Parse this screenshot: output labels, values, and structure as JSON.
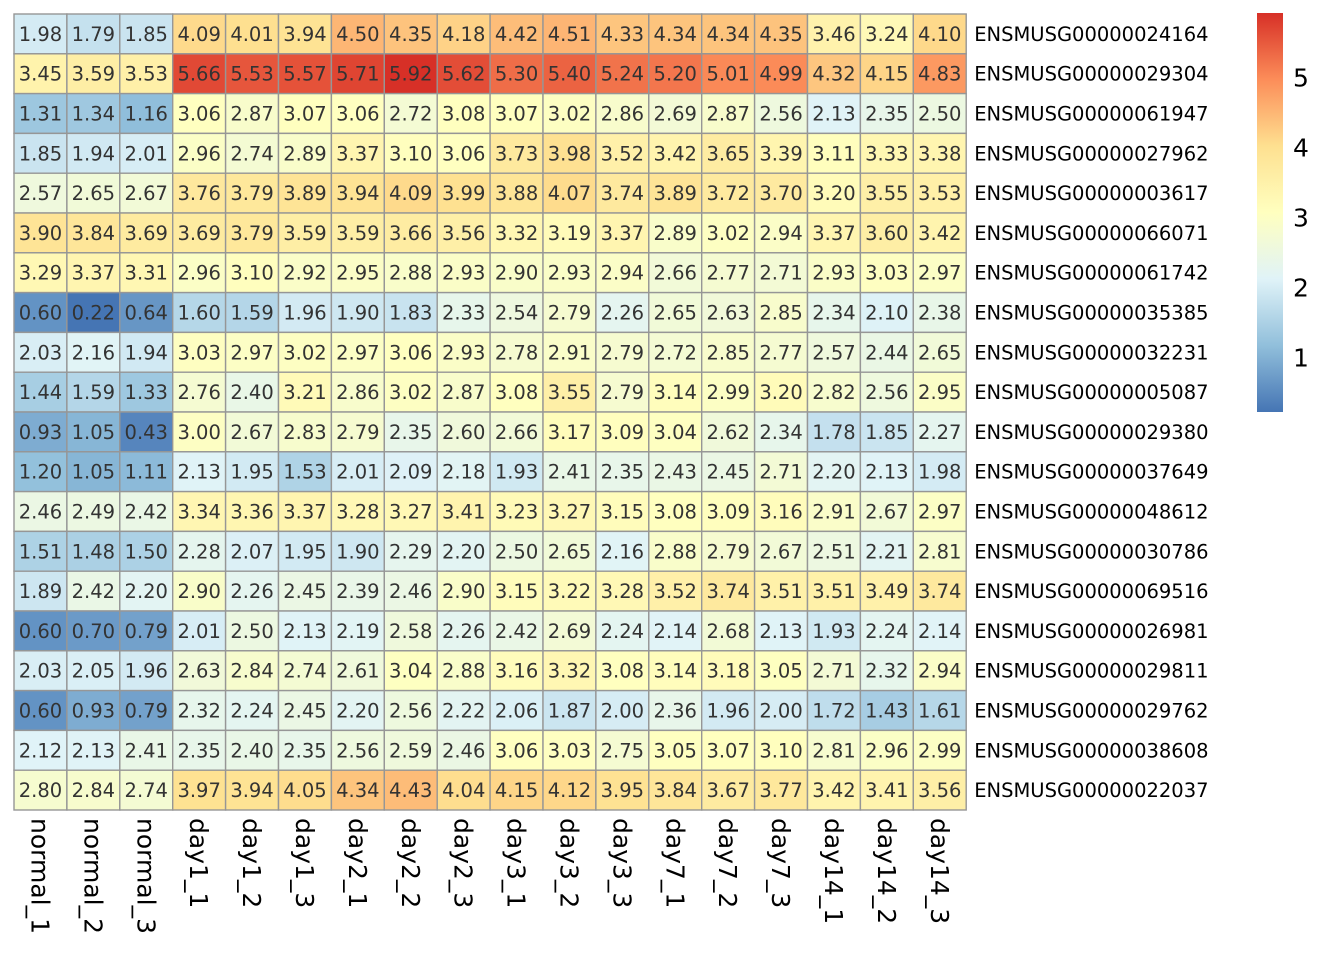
{
  "chart_data": {
    "type": "heatmap",
    "columns": [
      "normal_1",
      "normal_2",
      "normal_3",
      "day1_1",
      "day1_2",
      "day1_3",
      "day2_1",
      "day2_2",
      "day2_3",
      "day3_1",
      "day3_2",
      "day3_3",
      "day7_1",
      "day7_2",
      "day7_3",
      "day14_1",
      "day14_2",
      "day14_3"
    ],
    "rows": [
      "ENSMUSG00000024164",
      "ENSMUSG00000029304",
      "ENSMUSG00000061947",
      "ENSMUSG00000027962",
      "ENSMUSG00000003617",
      "ENSMUSG00000066071",
      "ENSMUSG00000061742",
      "ENSMUSG00000035385",
      "ENSMUSG00000032231",
      "ENSMUSG00000005087",
      "ENSMUSG00000029380",
      "ENSMUSG00000037649",
      "ENSMUSG00000048612",
      "ENSMUSG00000030786",
      "ENSMUSG00000069516",
      "ENSMUSG00000026981",
      "ENSMUSG00000029811",
      "ENSMUSG00000029762",
      "ENSMUSG00000038608",
      "ENSMUSG00000022037"
    ],
    "values": [
      [
        1.98,
        1.79,
        1.85,
        4.09,
        4.01,
        3.94,
        4.5,
        4.35,
        4.18,
        4.42,
        4.51,
        4.33,
        4.34,
        4.34,
        4.35,
        3.46,
        3.24,
        4.1
      ],
      [
        3.45,
        3.59,
        3.53,
        5.66,
        5.53,
        5.57,
        5.71,
        5.92,
        5.62,
        5.3,
        5.4,
        5.24,
        5.2,
        5.01,
        4.99,
        4.32,
        4.15,
        4.83
      ],
      [
        1.31,
        1.34,
        1.16,
        3.06,
        2.87,
        3.07,
        3.06,
        2.72,
        3.08,
        3.07,
        3.02,
        2.86,
        2.69,
        2.87,
        2.56,
        2.13,
        2.35,
        2.5
      ],
      [
        1.85,
        1.94,
        2.01,
        2.96,
        2.74,
        2.89,
        3.37,
        3.1,
        3.06,
        3.73,
        3.98,
        3.52,
        3.42,
        3.65,
        3.39,
        3.11,
        3.33,
        3.38
      ],
      [
        2.57,
        2.65,
        2.67,
        3.76,
        3.79,
        3.89,
        3.94,
        4.09,
        3.99,
        3.88,
        4.07,
        3.74,
        3.89,
        3.72,
        3.7,
        3.2,
        3.55,
        3.53
      ],
      [
        3.9,
        3.84,
        3.69,
        3.69,
        3.79,
        3.59,
        3.59,
        3.66,
        3.56,
        3.32,
        3.19,
        3.37,
        2.89,
        3.02,
        2.94,
        3.37,
        3.6,
        3.42
      ],
      [
        3.29,
        3.37,
        3.31,
        2.96,
        3.1,
        2.92,
        2.95,
        2.88,
        2.93,
        2.9,
        2.93,
        2.94,
        2.66,
        2.77,
        2.71,
        2.93,
        3.03,
        2.97
      ],
      [
        0.6,
        0.22,
        0.64,
        1.6,
        1.59,
        1.96,
        1.9,
        1.83,
        2.33,
        2.54,
        2.79,
        2.26,
        2.65,
        2.63,
        2.85,
        2.34,
        2.1,
        2.38
      ],
      [
        2.03,
        2.16,
        1.94,
        3.03,
        2.97,
        3.02,
        2.97,
        3.06,
        2.93,
        2.78,
        2.91,
        2.79,
        2.72,
        2.85,
        2.77,
        2.57,
        2.44,
        2.65
      ],
      [
        1.44,
        1.59,
        1.33,
        2.76,
        2.4,
        3.21,
        2.86,
        3.02,
        2.87,
        3.08,
        3.55,
        2.79,
        3.14,
        2.99,
        3.2,
        2.82,
        2.56,
        2.95
      ],
      [
        0.93,
        1.05,
        0.43,
        3.0,
        2.67,
        2.83,
        2.79,
        2.35,
        2.6,
        2.66,
        3.17,
        3.09,
        3.04,
        2.62,
        2.34,
        1.78,
        1.85,
        2.27
      ],
      [
        1.2,
        1.05,
        1.11,
        2.13,
        1.95,
        1.53,
        2.01,
        2.09,
        2.18,
        1.93,
        2.41,
        2.35,
        2.43,
        2.45,
        2.71,
        2.2,
        2.13,
        1.98
      ],
      [
        2.46,
        2.49,
        2.42,
        3.34,
        3.36,
        3.37,
        3.28,
        3.27,
        3.41,
        3.23,
        3.27,
        3.15,
        3.08,
        3.09,
        3.16,
        2.91,
        2.67,
        2.97
      ],
      [
        1.51,
        1.48,
        1.5,
        2.28,
        2.07,
        1.95,
        1.9,
        2.29,
        2.2,
        2.5,
        2.65,
        2.16,
        2.88,
        2.79,
        2.67,
        2.51,
        2.21,
        2.81
      ],
      [
        1.89,
        2.42,
        2.2,
        2.9,
        2.26,
        2.45,
        2.39,
        2.46,
        2.9,
        3.15,
        3.22,
        3.28,
        3.52,
        3.74,
        3.51,
        3.51,
        3.49,
        3.74
      ],
      [
        0.6,
        0.7,
        0.79,
        2.01,
        2.5,
        2.13,
        2.19,
        2.58,
        2.26,
        2.42,
        2.69,
        2.24,
        2.14,
        2.68,
        2.13,
        1.93,
        2.24,
        2.14
      ],
      [
        2.03,
        2.05,
        1.96,
        2.63,
        2.84,
        2.74,
        2.61,
        3.04,
        2.88,
        3.16,
        3.32,
        3.08,
        3.14,
        3.18,
        3.05,
        2.71,
        2.32,
        2.94
      ],
      [
        0.6,
        0.93,
        0.79,
        2.32,
        2.24,
        2.45,
        2.2,
        2.56,
        2.22,
        2.06,
        1.87,
        2.0,
        2.36,
        1.96,
        2.0,
        1.72,
        1.43,
        1.61
      ],
      [
        2.12,
        2.13,
        2.41,
        2.35,
        2.4,
        2.35,
        2.56,
        2.59,
        2.46,
        3.06,
        3.03,
        2.75,
        3.05,
        3.07,
        3.1,
        2.81,
        2.96,
        2.99
      ],
      [
        2.8,
        2.84,
        2.74,
        3.97,
        3.94,
        4.05,
        4.34,
        4.43,
        4.04,
        4.15,
        4.12,
        3.95,
        3.84,
        3.67,
        3.77,
        3.42,
        3.41,
        3.56
      ]
    ],
    "colorscale": {
      "min": 0.22,
      "max": 5.92,
      "colors": [
        "#4575B4",
        "#91BFDB",
        "#E0F3F8",
        "#FFFFBF",
        "#FEE090",
        "#FC8D59",
        "#D73027"
      ]
    },
    "legend": {
      "position": "right",
      "ticks": [
        1,
        2,
        3,
        4,
        5
      ]
    },
    "cell_labels": true,
    "cell_border_color": "#969696"
  }
}
